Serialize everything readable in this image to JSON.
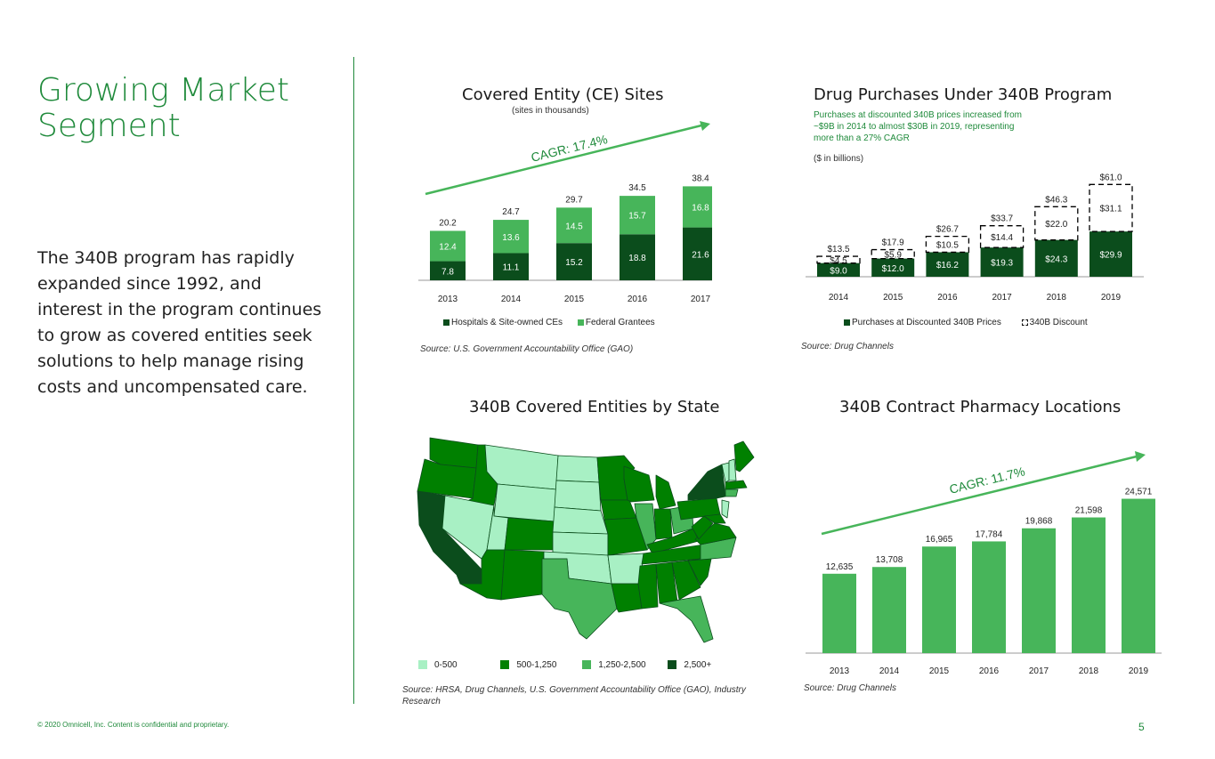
{
  "page": {
    "title": "Growing Market Segment",
    "body": "The 340B program has rapidly expanded since 1992, and interest in the program continues to grow as covered entities seek solutions to help manage rising costs and uncompensated care.",
    "footer": "© 2020 Omnicell, Inc. Content is confidential and proprietary.",
    "page_number": "5"
  },
  "colors": {
    "dark": "#0b4d1c",
    "mid": "#008000",
    "light": "#47b55a",
    "pale": "#a8f0c4",
    "accent": "#1f8a3b"
  },
  "chart_data": [
    {
      "id": "ce_sites",
      "type": "bar",
      "title": "Covered Entity (CE) Sites",
      "subtitle": "(sites in thousands)",
      "annotation": "CAGR: 17.4%",
      "categories": [
        "2013",
        "2014",
        "2015",
        "2016",
        "2017"
      ],
      "series": [
        {
          "name": "Hospitals & Site-owned CEs",
          "values": [
            7.8,
            11.1,
            15.2,
            18.8,
            21.6
          ],
          "labels": [
            "7.8",
            "11.1",
            "15.2",
            "18.8",
            "21.6"
          ]
        },
        {
          "name": "Federal Grantees",
          "values": [
            12.4,
            13.6,
            14.5,
            15.7,
            16.8
          ],
          "labels": [
            "12.4",
            "13.6",
            "14.5",
            "15.7",
            "16.8"
          ]
        }
      ],
      "totals": [
        "20.2",
        "24.7",
        "29.7",
        "34.5",
        "38.4"
      ],
      "legend": [
        "Hospitals & Site-owned CEs",
        "Federal Grantees"
      ],
      "source": "Source: U.S. Government Accountability Office (GAO)"
    },
    {
      "id": "drug_purchases",
      "type": "bar",
      "title": "Drug Purchases Under 340B Program",
      "note": "Purchases at discounted 340B prices increased from ~$9B in 2014 to almost $30B in 2019, representing more than a 27% CAGR",
      "unit_note": "($ in billions)",
      "categories": [
        "2014",
        "2015",
        "2016",
        "2017",
        "2018",
        "2019"
      ],
      "series": [
        {
          "name": "Purchases at Discounted 340B Prices",
          "values": [
            9.0,
            12.0,
            16.2,
            19.3,
            24.3,
            29.9
          ],
          "labels": [
            "$9.0",
            "$12.0",
            "$16.2",
            "$19.3",
            "$24.3",
            "$29.9"
          ]
        },
        {
          "name": "340B Discount",
          "values": [
            4.5,
            5.9,
            10.5,
            14.4,
            22.0,
            31.1
          ],
          "labels": [
            "$4.5",
            "$5.9",
            "$10.5",
            "$14.4",
            "$22.0",
            "$31.1"
          ]
        }
      ],
      "totals": [
        "$13.5",
        "$17.9",
        "$26.7",
        "$33.7",
        "$46.3",
        "$61.0"
      ],
      "legend": [
        "Purchases at Discounted 340B Prices",
        "340B Discount"
      ],
      "source": "Source: Drug Channels"
    },
    {
      "id": "pharmacy_locations",
      "type": "bar",
      "title": "340B Contract Pharmacy Locations",
      "annotation": "CAGR: 11.7%",
      "categories": [
        "2013",
        "2014",
        "2015",
        "2016",
        "2017",
        "2018",
        "2019"
      ],
      "values": [
        12635,
        13708,
        16965,
        17784,
        19868,
        21598,
        24571
      ],
      "labels": [
        "12,635",
        "13,708",
        "16,965",
        "17,784",
        "19,868",
        "21,598",
        "24,571"
      ],
      "source": "Source: Drug Channels"
    }
  ],
  "map": {
    "title": "340B Covered Entities by State",
    "legend": [
      {
        "label": "0-500",
        "color": "#a8f0c4"
      },
      {
        "label": "500-1,250",
        "color": "#008000"
      },
      {
        "label": "1,250-2,500",
        "color": "#47b55a"
      },
      {
        "label": "2,500+",
        "color": "#0b4d1c"
      }
    ],
    "source": "Source: HRSA, Drug Channels, U.S. Government Accountability Office (GAO), Industry Research"
  }
}
